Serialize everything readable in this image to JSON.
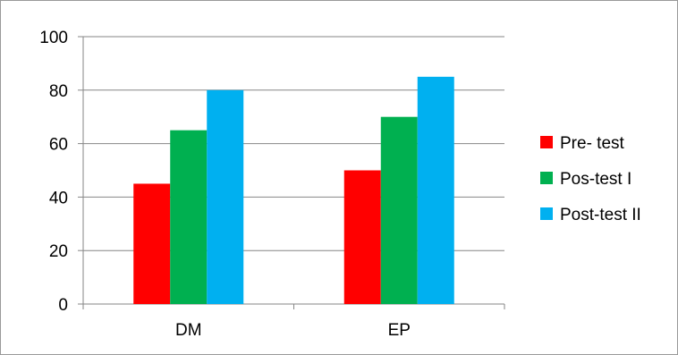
{
  "chart_data": {
    "type": "bar",
    "categories": [
      "DM",
      "EP"
    ],
    "series": [
      {
        "name": "Pre- test",
        "values": [
          45,
          50
        ],
        "color": "#ff0000"
      },
      {
        "name": "Pos-test I",
        "values": [
          65,
          70
        ],
        "color": "#00b050"
      },
      {
        "name": "Post-test II",
        "values": [
          80,
          85
        ],
        "color": "#00b0f0"
      }
    ],
    "ylim": [
      0,
      100
    ],
    "yticks": [
      0,
      20,
      40,
      60,
      80,
      100
    ],
    "grid": true,
    "legend_position": "right"
  }
}
